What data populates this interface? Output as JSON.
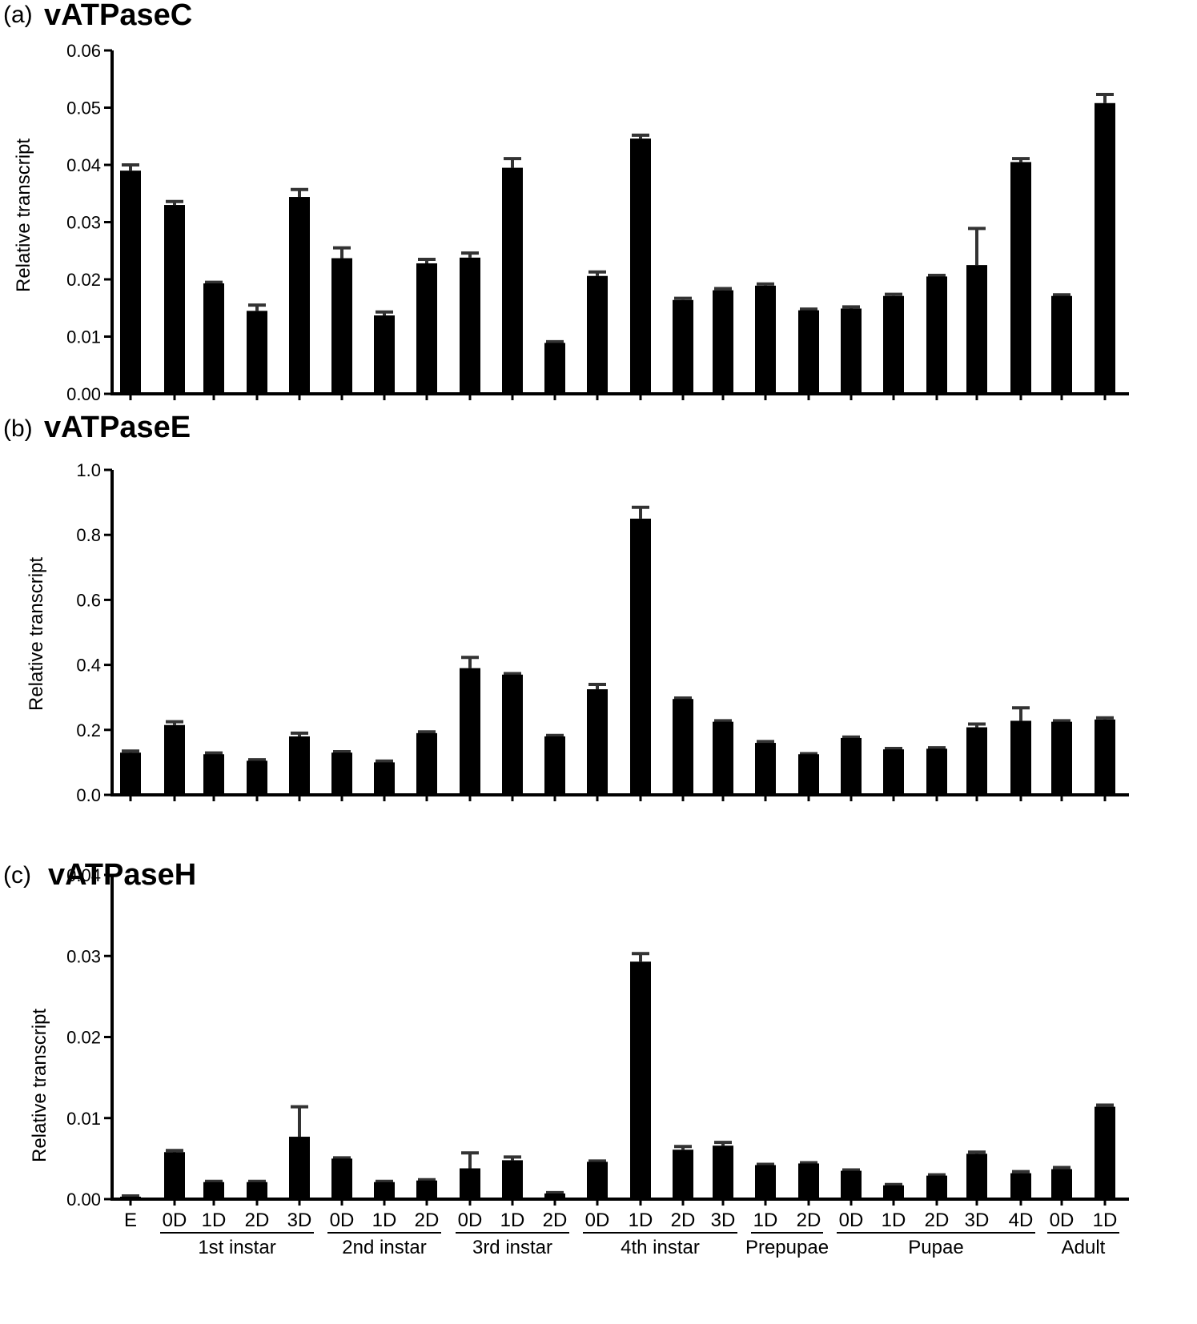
{
  "figure": {
    "panels": [
      {
        "label": "(a)",
        "title": "vATPaseC",
        "ylabel": "Relative transcript"
      },
      {
        "label": "(b)",
        "title": "vATPaseE",
        "ylabel": "Relative transcript"
      },
      {
        "label": "(c)",
        "title": "vATPaseH",
        "ylabel": "Relative transcript"
      }
    ],
    "x_tick_labels": [
      "E",
      "0D",
      "1D",
      "2D",
      "3D",
      "0D",
      "1D",
      "2D",
      "0D",
      "1D",
      "2D",
      "0D",
      "1D",
      "2D",
      "3D",
      "1D",
      "2D",
      "0D",
      "1D",
      "2D",
      "3D",
      "4D",
      "0D",
      "1D"
    ],
    "x_groups": [
      {
        "label": "1st instar",
        "start": 1,
        "end": 4
      },
      {
        "label": "2nd instar",
        "start": 5,
        "end": 7
      },
      {
        "label": "3rd instar",
        "start": 8,
        "end": 10
      },
      {
        "label": "4th instar",
        "start": 11,
        "end": 14
      },
      {
        "label": "Prepupae",
        "start": 15,
        "end": 16
      },
      {
        "label": "Pupae",
        "start": 17,
        "end": 21
      },
      {
        "label": "Adult",
        "start": 22,
        "end": 23
      }
    ]
  },
  "chart_data": [
    {
      "type": "bar",
      "title": "vATPaseC",
      "panel": "(a)",
      "xlabel": "",
      "ylabel": "Relative transcript",
      "ylim": [
        0,
        0.06
      ],
      "yticks": [
        "0.00",
        "0.01",
        "0.02",
        "0.03",
        "0.04",
        "0.05",
        "0.06"
      ],
      "grid": false,
      "categories": [
        "E",
        "1st instar 0D",
        "1st instar 1D",
        "1st instar 2D",
        "1st instar 3D",
        "2nd instar 0D",
        "2nd instar 1D",
        "2nd instar 2D",
        "3rd instar 0D",
        "3rd instar 1D",
        "3rd instar 2D",
        "4th instar 0D",
        "4th instar 1D",
        "4th instar 2D",
        "4th instar 3D",
        "Prepupae 1D",
        "Prepupae 2D",
        "Pupae 0D",
        "Pupae 1D",
        "Pupae 2D",
        "Pupae 3D",
        "Pupae 4D",
        "Adult 0D",
        "Adult 1D"
      ],
      "values": [
        0.039,
        0.033,
        0.0193,
        0.0145,
        0.0344,
        0.0237,
        0.0137,
        0.0228,
        0.0238,
        0.0395,
        0.0089,
        0.0206,
        0.0446,
        0.0164,
        0.0181,
        0.0189,
        0.0146,
        0.0149,
        0.0171,
        0.0205,
        0.0225,
        0.0405,
        0.0171,
        0.0508
      ],
      "errors": [
        0.001,
        0.0006,
        0.0002,
        0.001,
        0.0013,
        0.0018,
        0.0006,
        0.0007,
        0.0008,
        0.0016,
        0.0002,
        0.0007,
        0.0006,
        0.0003,
        0.0003,
        0.0003,
        0.0002,
        0.0003,
        0.0003,
        0.0002,
        0.0064,
        0.0006,
        0.0002,
        0.0015
      ]
    },
    {
      "type": "bar",
      "title": "vATPaseE",
      "panel": "(b)",
      "xlabel": "",
      "ylabel": "Relative transcript",
      "ylim": [
        0,
        1.0
      ],
      "yticks": [
        "0.0",
        "0.2",
        "0.4",
        "0.6",
        "0.8",
        "1.0"
      ],
      "grid": false,
      "categories": [
        "E",
        "1st instar 0D",
        "1st instar 1D",
        "1st instar 2D",
        "1st instar 3D",
        "2nd instar 0D",
        "2nd instar 1D",
        "2nd instar 2D",
        "3rd instar 0D",
        "3rd instar 1D",
        "3rd instar 2D",
        "4th instar 0D",
        "4th instar 1D",
        "4th instar 2D",
        "4th instar 3D",
        "Prepupae 1D",
        "Prepupae 2D",
        "Pupae 0D",
        "Pupae 1D",
        "Pupae 2D",
        "Pupae 3D",
        "Pupae 4D",
        "Adult 0D",
        "Adult 1D"
      ],
      "values": [
        0.13,
        0.215,
        0.125,
        0.105,
        0.18,
        0.13,
        0.1,
        0.19,
        0.39,
        0.37,
        0.18,
        0.325,
        0.85,
        0.295,
        0.225,
        0.16,
        0.125,
        0.175,
        0.14,
        0.142,
        0.208,
        0.228,
        0.225,
        0.232
      ],
      "errors": [
        0.005,
        0.01,
        0.004,
        0.003,
        0.01,
        0.003,
        0.004,
        0.004,
        0.033,
        0.003,
        0.003,
        0.015,
        0.035,
        0.003,
        0.003,
        0.004,
        0.002,
        0.003,
        0.003,
        0.003,
        0.01,
        0.04,
        0.003,
        0.005
      ]
    },
    {
      "type": "bar",
      "title": "vATPaseH",
      "panel": "(c)",
      "xlabel": "",
      "ylabel": "Relative transcript",
      "ylim": [
        0,
        0.04
      ],
      "yticks": [
        "0.00",
        "0.01",
        "0.02",
        "0.03",
        "0.04"
      ],
      "grid": false,
      "categories": [
        "E",
        "1st instar 0D",
        "1st instar 1D",
        "1st instar 2D",
        "1st instar 3D",
        "2nd instar 0D",
        "2nd instar 1D",
        "2nd instar 2D",
        "3rd instar 0D",
        "3rd instar 1D",
        "3rd instar 2D",
        "4th instar 0D",
        "4th instar 1D",
        "4th instar 2D",
        "4th instar 3D",
        "Prepupae 1D",
        "Prepupae 2D",
        "Pupae 0D",
        "Pupae 1D",
        "Pupae 2D",
        "Pupae 3D",
        "Pupae 4D",
        "Adult 0D",
        "Adult 1D"
      ],
      "values": [
        0.0003,
        0.0058,
        0.0021,
        0.0021,
        0.0077,
        0.005,
        0.0021,
        0.0023,
        0.0038,
        0.0048,
        0.0007,
        0.0046,
        0.0293,
        0.0061,
        0.0066,
        0.0042,
        0.0044,
        0.0035,
        0.0017,
        0.0029,
        0.0056,
        0.0032,
        0.0037,
        0.0114
      ],
      "errors": [
        0.0001,
        0.0002,
        0.0001,
        0.0001,
        0.0037,
        0.0001,
        0.0001,
        0.0001,
        0.0019,
        0.0004,
        0.0001,
        0.0001,
        0.001,
        0.0004,
        0.0004,
        0.0001,
        0.0001,
        0.0001,
        0.0001,
        0.0001,
        0.0002,
        0.0002,
        0.0002,
        0.0002
      ]
    }
  ]
}
